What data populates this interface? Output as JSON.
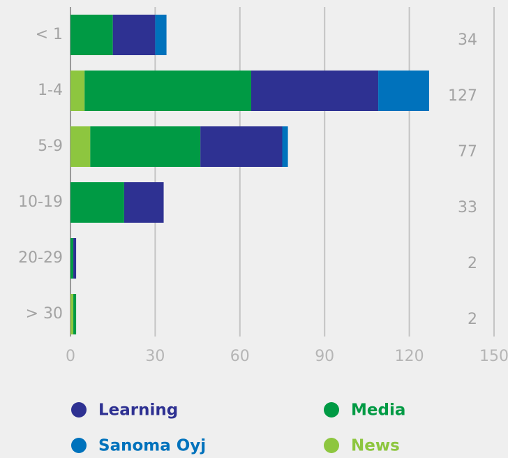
{
  "chart_data": {
    "type": "stacked-barh",
    "categories": [
      "< 1",
      "1-4",
      "5-9",
      "10-19",
      "20-29",
      "> 30"
    ],
    "series": [
      {
        "name": "News",
        "color": "#8dc63f",
        "values": [
          0,
          5,
          7,
          0,
          0,
          1
        ]
      },
      {
        "name": "Media",
        "color": "#009a44",
        "values": [
          15,
          59,
          39,
          19,
          1,
          1
        ]
      },
      {
        "name": "Learning",
        "color": "#2e3192",
        "values": [
          15,
          45,
          29,
          14,
          1,
          0
        ]
      },
      {
        "name": "Sanoma Oyj",
        "color": "#0072bc",
        "values": [
          4,
          18,
          2,
          0,
          0,
          0
        ]
      }
    ],
    "totals": [
      34,
      127,
      77,
      33,
      2,
      2
    ],
    "xlim": [
      0,
      150
    ],
    "xticks": [
      0,
      30,
      60,
      90,
      120,
      150
    ],
    "grid": true
  }
}
